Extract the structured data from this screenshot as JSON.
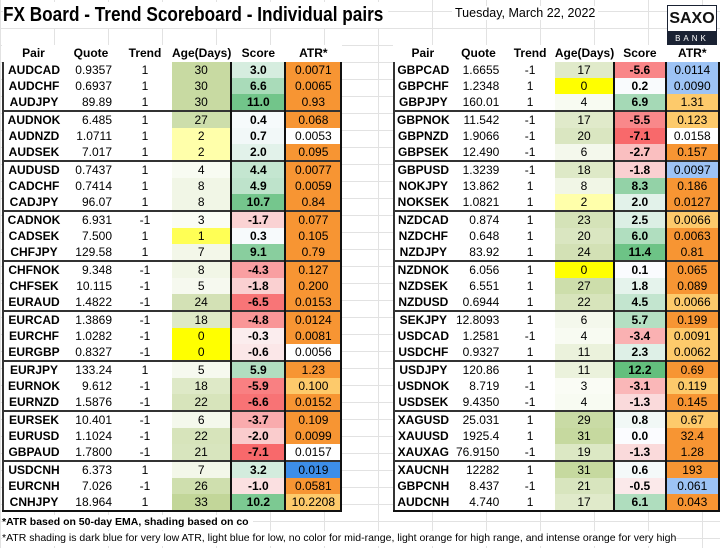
{
  "title": "FX Board - Trend Scoreboard - Individual pairs",
  "date": "Tuesday, March 22, 2022",
  "logo": {
    "top": "SAXO",
    "bottom": "BANK"
  },
  "headers": [
    "Pair",
    "Quote",
    "Trend",
    "Age(Days)",
    "Score",
    "ATR*"
  ],
  "atr_colors": {
    "O": "#f79533",
    "LO": "#fdca6b",
    "LB": "#9dc3f5",
    "DB": "#3d8ee8",
    "N": "#ffffff"
  },
  "left_rows": [
    [
      "AUDCAD",
      "0.9357",
      "1",
      "30",
      "3.0",
      "0.0071",
      "O"
    ],
    [
      "AUDCHF",
      "0.6937",
      "1",
      "30",
      "6.6",
      "0.0065",
      "O"
    ],
    [
      "AUDJPY",
      "89.89",
      "1",
      "30",
      "11.0",
      "0.93",
      "O"
    ],
    [
      "AUDNOK",
      "6.485",
      "1",
      "27",
      "0.4",
      "0.068",
      "O"
    ],
    [
      "AUDNZD",
      "1.0711",
      "1",
      "2",
      "0.7",
      "0.0053",
      "N"
    ],
    [
      "AUDSEK",
      "7.017",
      "1",
      "2",
      "2.0",
      "0.095",
      "O"
    ],
    [
      "AUDUSD",
      "0.7437",
      "1",
      "4",
      "4.4",
      "0.0077",
      "O"
    ],
    [
      "CADCHF",
      "0.7414",
      "1",
      "8",
      "4.9",
      "0.0059",
      "O"
    ],
    [
      "CADJPY",
      "96.07",
      "1",
      "8",
      "10.7",
      "0.84",
      "O"
    ],
    [
      "CADNOK",
      "6.931",
      "-1",
      "3",
      "-1.7",
      "0.077",
      "O"
    ],
    [
      "CADSEK",
      "7.500",
      "1",
      "1",
      "0.3",
      "0.105",
      "O"
    ],
    [
      "CHFJPY",
      "129.58",
      "1",
      "7",
      "9.1",
      "0.79",
      "O"
    ],
    [
      "CHFNOK",
      "9.348",
      "-1",
      "8",
      "-4.3",
      "0.127",
      "O"
    ],
    [
      "CHFSEK",
      "10.115",
      "-1",
      "5",
      "-1.8",
      "0.200",
      "O"
    ],
    [
      "EURAUD",
      "1.4822",
      "-1",
      "24",
      "-6.5",
      "0.0153",
      "O"
    ],
    [
      "EURCAD",
      "1.3869",
      "-1",
      "18",
      "-4.8",
      "0.0124",
      "O"
    ],
    [
      "EURCHF",
      "1.0282",
      "-1",
      "0",
      "-0.3",
      "0.0081",
      "O"
    ],
    [
      "EURGBP",
      "0.8327",
      "-1",
      "0",
      "-0.6",
      "0.0056",
      "N"
    ],
    [
      "EURJPY",
      "133.24",
      "1",
      "5",
      "5.9",
      "1.23",
      "O"
    ],
    [
      "EURNOK",
      "9.612",
      "-1",
      "18",
      "-5.9",
      "0.100",
      "LO"
    ],
    [
      "EURNZD",
      "1.5876",
      "-1",
      "22",
      "-6.6",
      "0.0152",
      "O"
    ],
    [
      "EURSEK",
      "10.401",
      "-1",
      "6",
      "-3.7",
      "0.109",
      "O"
    ],
    [
      "EURUSD",
      "1.1024",
      "-1",
      "22",
      "-2.0",
      "0.0099",
      "O"
    ],
    [
      "GBPAUD",
      "1.7800",
      "-1",
      "21",
      "-7.1",
      "0.0157",
      "N"
    ],
    [
      "USDCNH",
      "6.373",
      "1",
      "7",
      "3.2",
      "0.019",
      "DB"
    ],
    [
      "EURCNH",
      "7.026",
      "-1",
      "26",
      "-1.0",
      "0.0581",
      "O"
    ],
    [
      "CNHJPY",
      "18.964",
      "1",
      "33",
      "10.2",
      "10.2208",
      "LO"
    ]
  ],
  "right_rows": [
    [
      "GBPCAD",
      "1.6655",
      "-1",
      "17",
      "-5.6",
      "0.0114",
      "LB"
    ],
    [
      "GBPCHF",
      "1.2348",
      "1",
      "0",
      "0.2",
      "0.0090",
      "LB"
    ],
    [
      "GBPJPY",
      "160.01",
      "1",
      "4",
      "6.9",
      "1.31",
      "LO"
    ],
    [
      "GBPNOK",
      "11.542",
      "-1",
      "17",
      "-5.5",
      "0.123",
      "LO"
    ],
    [
      "GBPNZD",
      "1.9066",
      "-1",
      "20",
      "-7.1",
      "0.0158",
      "N"
    ],
    [
      "GBPSEK",
      "12.490",
      "-1",
      "6",
      "-2.7",
      "0.157",
      "O"
    ],
    [
      "GBPUSD",
      "1.3239",
      "-1",
      "18",
      "-1.8",
      "0.0097",
      "LB"
    ],
    [
      "NOKJPY",
      "13.862",
      "1",
      "8",
      "8.3",
      "0.186",
      "O"
    ],
    [
      "NOKSEK",
      "1.0821",
      "1",
      "2",
      "2.0",
      "0.0127",
      "O"
    ],
    [
      "NZDCAD",
      "0.874",
      "1",
      "23",
      "2.5",
      "0.0066",
      "LO"
    ],
    [
      "NZDCHF",
      "0.648",
      "1",
      "20",
      "6.0",
      "0.0063",
      "O"
    ],
    [
      "NZDJPY",
      "83.92",
      "1",
      "24",
      "11.4",
      "0.81",
      "O"
    ],
    [
      "NZDNOK",
      "6.056",
      "1",
      "0",
      "0.1",
      "0.065",
      "O"
    ],
    [
      "NZDSEK",
      "6.551",
      "1",
      "27",
      "1.8",
      "0.089",
      "O"
    ],
    [
      "NZDUSD",
      "0.6944",
      "1",
      "22",
      "4.5",
      "0.0066",
      "LO"
    ],
    [
      "SEKJPY",
      "12.8093",
      "1",
      "6",
      "5.7",
      "0.199",
      "O"
    ],
    [
      "USDCAD",
      "1.2581",
      "-1",
      "4",
      "-3.4",
      "0.0091",
      "LO"
    ],
    [
      "USDCHF",
      "0.9327",
      "1",
      "11",
      "2.3",
      "0.0062",
      "LO"
    ],
    [
      "USDJPY",
      "120.86",
      "1",
      "11",
      "12.2",
      "0.69",
      "O"
    ],
    [
      "USDNOK",
      "8.719",
      "-1",
      "3",
      "-3.1",
      "0.119",
      "LO"
    ],
    [
      "USDSEK",
      "9.4350",
      "-1",
      "4",
      "-1.3",
      "0.145",
      "O"
    ],
    [
      "XAGUSD",
      "25.031",
      "1",
      "29",
      "0.8",
      "0.67",
      "LO"
    ],
    [
      "XAUUSD",
      "1925.4",
      "1",
      "31",
      "0.0",
      "32.4",
      "O"
    ],
    [
      "XAUXAG",
      "76.9150",
      "-1",
      "19",
      "-1.3",
      "1.28",
      "O"
    ],
    [
      "XAUCNH",
      "12282",
      "1",
      "31",
      "0.6",
      "193",
      "O"
    ],
    [
      "GBPCNH",
      "8.437",
      "-1",
      "21",
      "-0.5",
      "0.061",
      "LB"
    ],
    [
      "AUDCNH",
      "4.740",
      "1",
      "17",
      "6.1",
      "0.043",
      "O"
    ]
  ],
  "footnote1": "*ATR based on 50-day EMA, shading based on co",
  "footnote2": "*ATR shading is dark blue for very low ATR, light blue for low, no color for mid-range, light orange for high range, and intense orange for very high"
}
